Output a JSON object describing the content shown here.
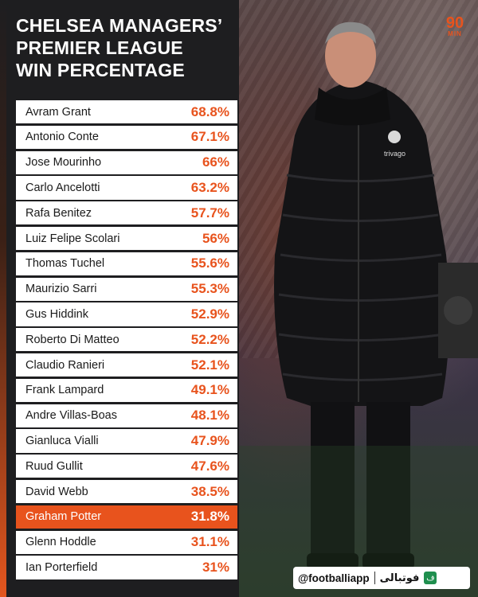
{
  "title_lines": [
    "CHELSEA MANAGERS’",
    "PREMIER LEAGUE",
    "WIN PERCENTAGE"
  ],
  "logo": {
    "top": "90",
    "bottom": "MIN"
  },
  "managers": [
    {
      "name": "Avram Grant",
      "pct": "68.8%"
    },
    {
      "name": "Antonio Conte",
      "pct": "67.1%"
    },
    {
      "name": "Jose Mourinho",
      "pct": "66%"
    },
    {
      "name": "Carlo Ancelotti",
      "pct": "63.2%"
    },
    {
      "name": "Rafa Benitez",
      "pct": "57.7%"
    },
    {
      "name": "Luiz Felipe Scolari",
      "pct": "56%"
    },
    {
      "name": "Thomas Tuchel",
      "pct": "55.6%"
    },
    {
      "name": "Maurizio Sarri",
      "pct": "55.3%"
    },
    {
      "name": "Gus Hiddink",
      "pct": "52.9%"
    },
    {
      "name": "Roberto Di Matteo",
      "pct": "52.2%"
    },
    {
      "name": "Claudio Ranieri",
      "pct": "52.1%"
    },
    {
      "name": "Frank Lampard",
      "pct": "49.1%"
    },
    {
      "name": "Andre Villas-Boas",
      "pct": "48.1%"
    },
    {
      "name": "Gianluca Vialli",
      "pct": "47.9%"
    },
    {
      "name": "Ruud Gullit",
      "pct": "47.6%"
    },
    {
      "name": "David Webb",
      "pct": "38.5%"
    },
    {
      "name": "Graham Potter",
      "pct": "31.8%",
      "highlight": true
    },
    {
      "name": "Glenn Hoddle",
      "pct": "31.1%"
    },
    {
      "name": "Ian Porterfield",
      "pct": "31%"
    }
  ],
  "footer": {
    "handle": "@footballiapp",
    "brand": "فوتبالی",
    "brand_icon": "ف"
  },
  "colors": {
    "accent": "#e8531d",
    "panel": "#1e1e20",
    "row": "#ffffff"
  },
  "photo": {
    "alt": "manager-photo"
  }
}
